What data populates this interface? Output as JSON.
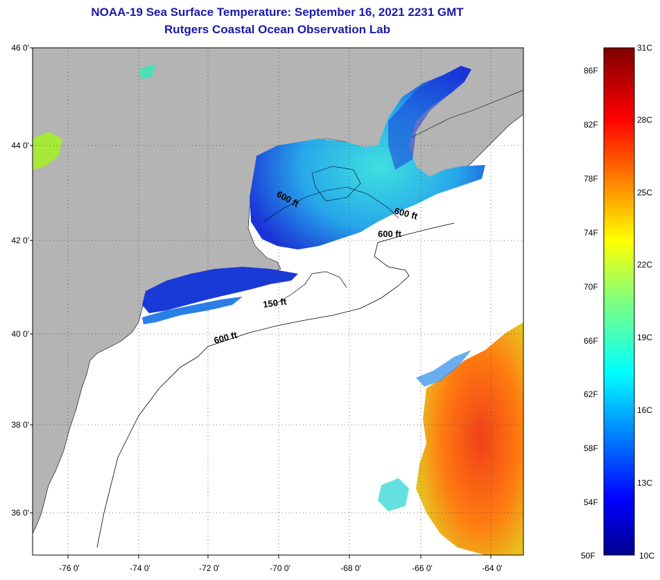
{
  "header": {
    "title": "NOAA-19 Sea Surface Temperature:  September 16, 2021 2231 GMT",
    "subtitle": "Rutgers Coastal Ocean Observation Lab"
  },
  "map": {
    "lat_labels": [
      "46 0'",
      "44 0'",
      "42 0'",
      "40 0'",
      "38 0'",
      "36 0'"
    ],
    "lon_labels": [
      "-76 0'",
      "-74 0'",
      "-72 0'",
      "-70 0'",
      "-68 0'",
      "-66 0'",
      "-64 0'"
    ],
    "contour_labels": [
      "600 ft",
      "600 ft",
      "600 ft",
      "150 ft",
      "600 ft"
    ]
  },
  "colorbar": {
    "top_label": "31C",
    "bottom_celsius": "10C",
    "bottom_fahrenheit": "50F",
    "fahrenheit_labels": [
      "86F",
      "82F",
      "78F",
      "74F",
      "70F",
      "66F",
      "62F",
      "58F",
      "54F"
    ],
    "celsius_labels": [
      "28C",
      "25C",
      "22C",
      "19C",
      "16C",
      "13C"
    ]
  },
  "colors": {
    "title": "#1a1aa8",
    "land": "#b4b4b4",
    "ocean": "#ffffff",
    "gulf_maine_cool": "#3fd8e8",
    "gulf_maine_cold": "#1a3ad8",
    "gulf_stream_warm": "#e8501a"
  }
}
